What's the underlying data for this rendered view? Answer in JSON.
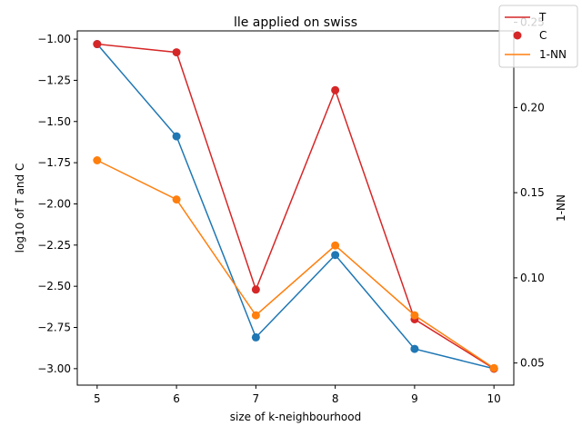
{
  "chart_data": {
    "type": "line",
    "title": "lle applied on swiss",
    "xlabel": "size of k-neighbourhood",
    "ylabel": "log10 of T and C",
    "y2label": "1-NN",
    "x": [
      5,
      6,
      7,
      8,
      9,
      10
    ],
    "xlim": [
      4.75,
      10.25
    ],
    "ylim": [
      -3.1,
      -0.95
    ],
    "y2lim": [
      0.037,
      0.245
    ],
    "xticks": [
      "5",
      "6",
      "7",
      "8",
      "9",
      "10"
    ],
    "yticks": [
      "-1.00",
      "-1.25",
      "-1.50",
      "-1.75",
      "-2.00",
      "-2.25",
      "-2.50",
      "-2.75",
      "-3.00"
    ],
    "y2ticks": [
      "0.05",
      "0.10",
      "0.15",
      "0.20",
      "0.25"
    ],
    "grid": false,
    "legend_position": "top-right",
    "series": [
      {
        "name": "T",
        "axis": "left",
        "style": "line",
        "color": "#d62728",
        "values": [
          -1.03,
          -1.08,
          -2.52,
          -1.31,
          -2.7,
          -3.0
        ]
      },
      {
        "name": "C",
        "axis": "left",
        "style": "markers",
        "color": "#d62728",
        "values": [
          -1.03,
          -1.08,
          -2.52,
          -1.31,
          -2.7,
          -3.0
        ]
      },
      {
        "axis": "left",
        "style": "line+markers",
        "color": "#1f77b4",
        "values": [
          -1.03,
          -1.59,
          -2.81,
          -2.31,
          -2.88,
          -3.0
        ]
      },
      {
        "name": "1-NN",
        "axis": "right",
        "style": "line+markers",
        "color": "#ff7f0e",
        "values": [
          0.169,
          0.146,
          0.078,
          0.119,
          0.078,
          0.047
        ]
      }
    ]
  }
}
